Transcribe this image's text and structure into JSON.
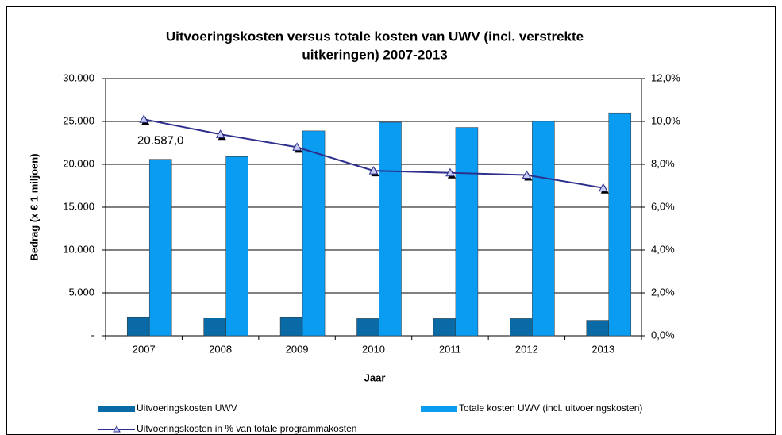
{
  "chart_data": {
    "type": "bar",
    "title": [
      "Uitvoeringskosten versus totale kosten van UWV (incl. verstrekte",
      "uitkeringen)  2007-2013"
    ],
    "x_label": "Jaar",
    "y_label": "Bedrag (x € 1 miljoen)",
    "categories": [
      "2007",
      "2008",
      "2009",
      "2010",
      "2011",
      "2012",
      "2013"
    ],
    "series": [
      {
        "name": "Uitvoeringskosten UWV",
        "color": "#0a6aa6",
        "values": [
          2200,
          2100,
          2200,
          2000,
          2000,
          2000,
          1800
        ]
      },
      {
        "name": "Totale kosten UWV (incl. uitvoeringskosten)",
        "color": "#0a9cf0",
        "values": [
          20587,
          20900,
          23900,
          24900,
          24300,
          25000,
          26000
        ],
        "value_labels": [
          "20.587,0",
          null,
          null,
          null,
          null,
          null,
          null
        ]
      },
      {
        "name": "Uitvoeringskosten in % van totale programmakosten",
        "type": "line",
        "axis": "y2",
        "color": "#2e2f8c",
        "values": [
          10.1,
          9.4,
          8.8,
          7.7,
          7.6,
          7.5,
          6.9
        ]
      }
    ],
    "ylim": [
      0,
      30000
    ],
    "yticks": [
      {
        "value": 0,
        "label": "-"
      },
      {
        "value": 5000,
        "label": "5.000"
      },
      {
        "value": 10000,
        "label": "10.000"
      },
      {
        "value": 15000,
        "label": "15.000"
      },
      {
        "value": 20000,
        "label": "20.000"
      },
      {
        "value": 25000,
        "label": "25.000"
      },
      {
        "value": 30000,
        "label": "30.000"
      }
    ],
    "y2lim": [
      0,
      12
    ],
    "y2ticks": [
      {
        "value": 0,
        "label": "0,0%"
      },
      {
        "value": 2,
        "label": "2,0%"
      },
      {
        "value": 4,
        "label": "4,0%"
      },
      {
        "value": 6,
        "label": "6,0%"
      },
      {
        "value": 8,
        "label": "8,0%"
      },
      {
        "value": 10,
        "label": "10,0%"
      },
      {
        "value": 12,
        "label": "12,0%"
      }
    ],
    "grid": true
  }
}
